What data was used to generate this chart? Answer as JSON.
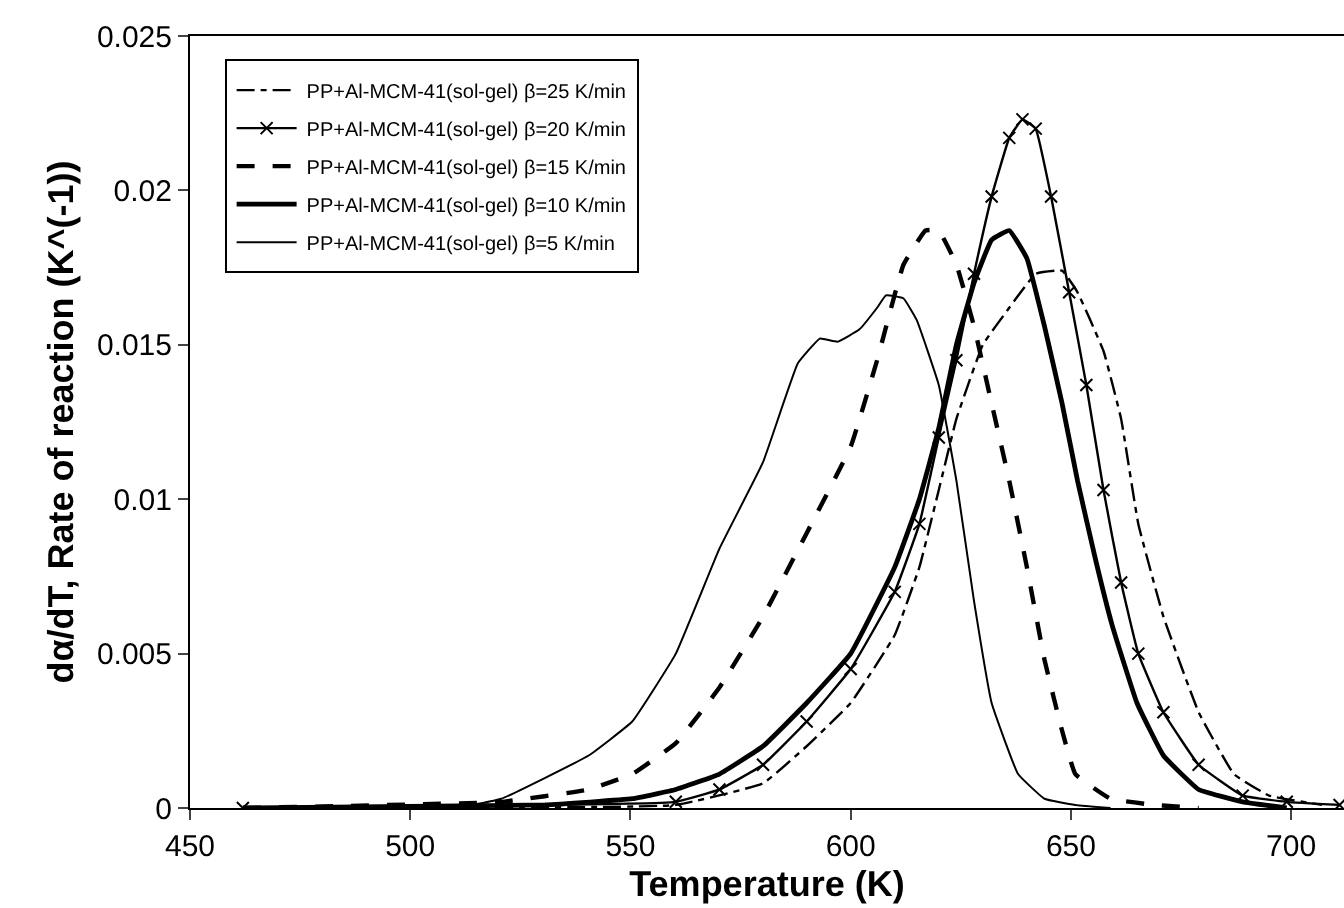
{
  "chart_data": {
    "type": "line",
    "xlabel": "Temperature (K)",
    "ylabel": "dα/dT, Rate of reaction (K^(-1))",
    "xlim": [
      450,
      712
    ],
    "ylim": [
      0,
      0.025
    ],
    "xticks": [
      450,
      500,
      550,
      600,
      650,
      700
    ],
    "yticks": [
      0,
      0.005,
      0.01,
      0.015,
      0.02,
      0.025
    ],
    "legend": "top left",
    "marker": "none",
    "series": [
      {
        "name": "PP+Al-MCM-41(sol-gel) β=25 K/min",
        "color": "#000000",
        "line_style": "dashed",
        "x": [
          462,
          560.3,
          580.1,
          590,
          600,
          610,
          615.6,
          620,
          624,
          630,
          636,
          642,
          648,
          651.5,
          657.4,
          661.4,
          665.3,
          671,
          679,
          687,
          695,
          707
        ],
        "values": [
          0,
          0.0001,
          0.0008,
          0.002,
          0.0034,
          0.0056,
          0.0078,
          0.0103,
          0.0126,
          0.015,
          0.0162,
          0.0173,
          0.0174,
          0.0167,
          0.0148,
          0.0126,
          0.0092,
          0.0062,
          0.0031,
          0.0011,
          0.0004,
          0.0001
        ]
      },
      {
        "name": "PP+Al-MCM-41(sol-gel) β=20 K/min",
        "color": "#000000",
        "marker": "cross",
        "x": [
          462,
          560.3,
          570.2,
          580.1,
          590,
          600,
          610,
          615.6,
          620,
          624,
          628,
          632,
          636,
          639,
          642,
          645.5,
          649.6,
          653.5,
          657.4,
          661.4,
          665.3,
          671,
          679,
          689,
          699,
          711
        ],
        "values": [
          0,
          0.0002,
          0.0006,
          0.0014,
          0.0028,
          0.0045,
          0.007,
          0.0092,
          0.012,
          0.0145,
          0.0173,
          0.0198,
          0.0217,
          0.0223,
          0.022,
          0.0198,
          0.0167,
          0.0137,
          0.0103,
          0.0073,
          0.005,
          0.0031,
          0.0014,
          0.0004,
          0.0002,
          0.0001
        ]
      },
      {
        "name": "PP+Al-MCM-41(sol-gel) β=15 K/min",
        "color": "#000000",
        "line_style": "dotted",
        "x": [
          462,
          520.7,
          540.5,
          550.4,
          560.3,
          570.2,
          580.1,
          590,
          600,
          606,
          612,
          617,
          620,
          624,
          628,
          632,
          636,
          640,
          644,
          648,
          651,
          659,
          669,
          679
        ],
        "values": [
          0,
          0.0002,
          0.0006,
          0.0011,
          0.0021,
          0.0039,
          0.0062,
          0.0089,
          0.0117,
          0.0145,
          0.0176,
          0.0187,
          0.0187,
          0.0176,
          0.0156,
          0.0131,
          0.0106,
          0.0078,
          0.0048,
          0.0025,
          0.0011,
          0.0003,
          0.0001,
          0
        ]
      },
      {
        "name": "PP+Al-MCM-41(sol-gel) β=10 K/min",
        "color": "#000000",
        "line_style": "solid",
        "x": [
          462,
          530.6,
          550.4,
          560.3,
          570.2,
          580.1,
          590,
          600,
          610,
          615.6,
          620,
          624,
          628,
          632,
          636,
          640,
          644,
          648,
          651.5,
          655.5,
          659.4,
          665,
          671,
          679,
          689,
          699
        ],
        "values": [
          0,
          0.0001,
          0.0003,
          0.0006,
          0.0011,
          0.002,
          0.0034,
          0.005,
          0.0078,
          0.01,
          0.0123,
          0.015,
          0.017,
          0.0184,
          0.0187,
          0.0178,
          0.0156,
          0.0131,
          0.0106,
          0.0081,
          0.0059,
          0.0034,
          0.0017,
          0.0006,
          0.0002,
          0
        ]
      },
      {
        "name": "PP+Al-MCM-41(sol-gel) β=5 K/min",
        "color": "#000000",
        "line_style": "solid",
        "x": [
          462,
          510,
          520.7,
          540.5,
          550.4,
          560.3,
          570.2,
          580.1,
          588,
          593,
          597,
          602,
          606,
          608,
          612,
          615,
          620,
          624,
          628,
          632,
          638,
          644,
          651,
          659
        ],
        "values": [
          0,
          0,
          0.0003,
          0.0017,
          0.0028,
          0.005,
          0.0084,
          0.0112,
          0.0144,
          0.0152,
          0.0151,
          0.0155,
          0.0162,
          0.0166,
          0.0165,
          0.0158,
          0.0137,
          0.0106,
          0.0067,
          0.0034,
          0.0011,
          0.0003,
          0.0001,
          0
        ]
      }
    ]
  }
}
